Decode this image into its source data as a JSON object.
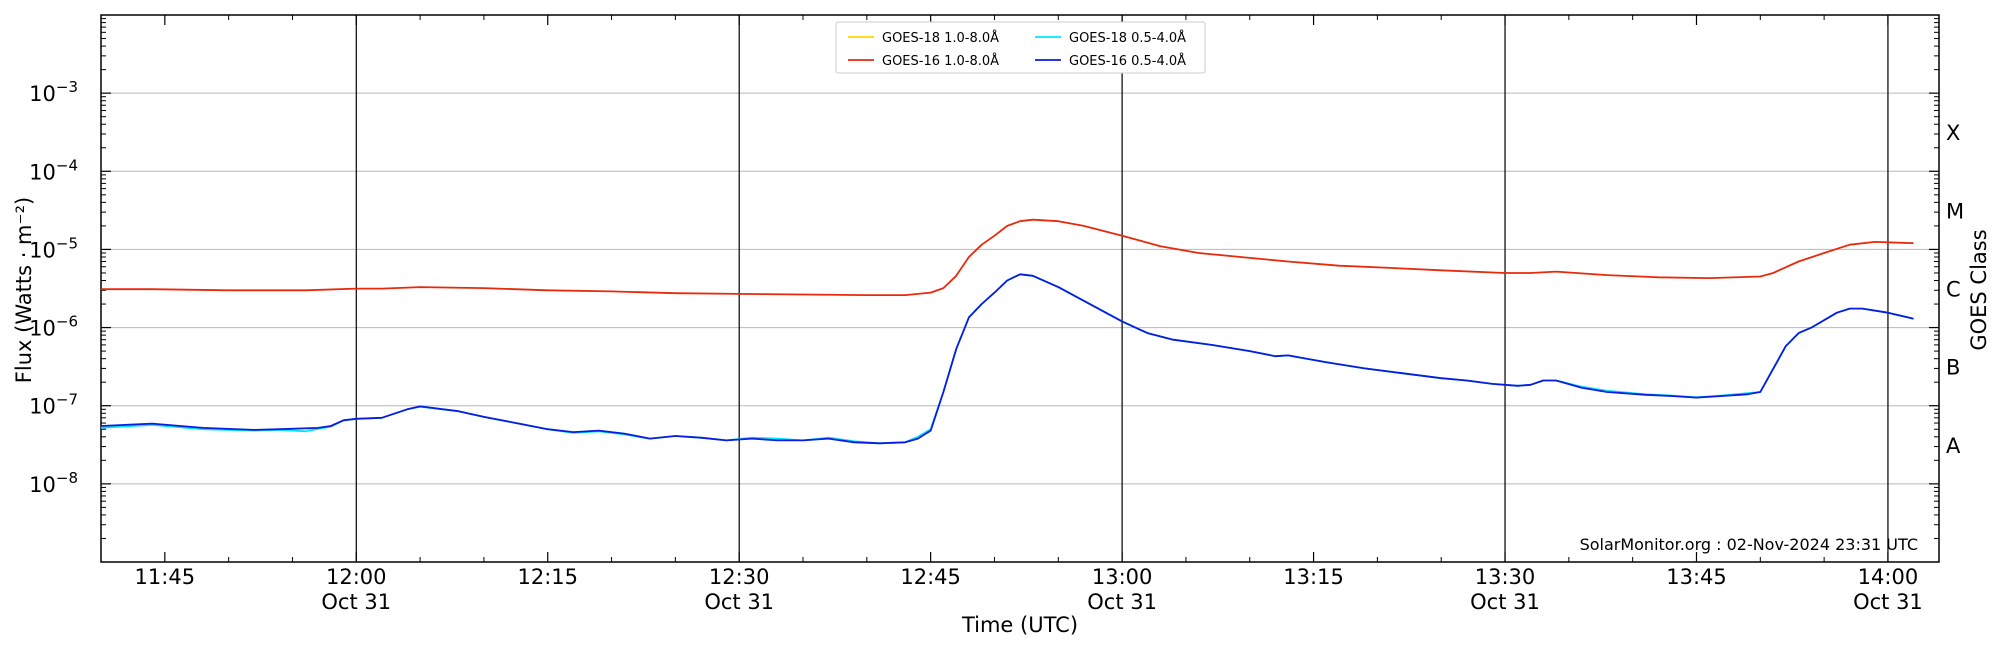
{
  "chart_data": {
    "type": "line",
    "title": "",
    "xlabel": "Time (UTC)",
    "ylabel": "Flux (Watts · m⁻²)",
    "y2label": "GOES Class",
    "yscale": "log",
    "ylim": [
      1e-09,
      0.01
    ],
    "xlim": [
      "11:40",
      "14:04"
    ],
    "grid": "horizontal",
    "legend_position": "top-center",
    "credit": "SolarMonitor.org : 02-Nov-2024 23:31 UTC",
    "yticks": [
      {
        "value": 1e-08,
        "label": "10",
        "exp": "−8"
      },
      {
        "value": 1e-07,
        "label": "10",
        "exp": "−7"
      },
      {
        "value": 1e-06,
        "label": "10",
        "exp": "−6"
      },
      {
        "value": 1e-05,
        "label": "10",
        "exp": "−5"
      },
      {
        "value": 0.0001,
        "label": "10",
        "exp": "−4"
      },
      {
        "value": 0.001,
        "label": "10",
        "exp": "−3"
      }
    ],
    "xticks": [
      {
        "time": "11:45",
        "label": "11:45",
        "date": ""
      },
      {
        "time": "12:00",
        "label": "12:00",
        "date": "Oct 31"
      },
      {
        "time": "12:15",
        "label": "12:15",
        "date": ""
      },
      {
        "time": "12:30",
        "label": "12:30",
        "date": "Oct 31"
      },
      {
        "time": "12:45",
        "label": "12:45",
        "date": ""
      },
      {
        "time": "13:00",
        "label": "13:00",
        "date": "Oct 31"
      },
      {
        "time": "13:15",
        "label": "13:15",
        "date": ""
      },
      {
        "time": "13:30",
        "label": "13:30",
        "date": "Oct 31"
      },
      {
        "time": "13:45",
        "label": "13:45",
        "date": ""
      },
      {
        "time": "14:00",
        "label": "14:00",
        "date": "Oct 31"
      }
    ],
    "vlines": [
      "12:00",
      "12:30",
      "13:00",
      "13:30",
      "14:00"
    ],
    "goes_classes": [
      {
        "label": "A",
        "value": 3.16e-08
      },
      {
        "label": "B",
        "value": 3.16e-07
      },
      {
        "label": "C",
        "value": 3.16e-06
      },
      {
        "label": "M",
        "value": 3.16e-05
      },
      {
        "label": "X",
        "value": 0.000316
      }
    ],
    "series": [
      {
        "name": "GOES-18 1.0-8.0Å",
        "color": "#FFD700",
        "points": []
      },
      {
        "name": "GOES-18 0.5-4.0Å",
        "color": "#00E5FF",
        "points": [
          [
            "11:40",
            5.2e-08
          ],
          [
            "11:44",
            5.7e-08
          ],
          [
            "11:48",
            5e-08
          ],
          [
            "11:52",
            4.8e-08
          ],
          [
            "11:54",
            4.9e-08
          ],
          [
            "11:56",
            4.7e-08
          ],
          [
            "11:58",
            5.4e-08
          ],
          [
            "11:59",
            6.5e-08
          ],
          [
            "12:00",
            6.8e-08
          ],
          [
            "12:02",
            7e-08
          ],
          [
            "12:04",
            9e-08
          ],
          [
            "12:05",
            9.7e-08
          ],
          [
            "12:08",
            8.5e-08
          ],
          [
            "12:10",
            7.2e-08
          ],
          [
            "12:13",
            5.8e-08
          ],
          [
            "12:15",
            5e-08
          ],
          [
            "12:17",
            4.5e-08
          ],
          [
            "12:19",
            4.7e-08
          ],
          [
            "12:21",
            4.3e-08
          ],
          [
            "12:23",
            3.8e-08
          ],
          [
            "12:25",
            4.1e-08
          ],
          [
            "12:27",
            3.9e-08
          ],
          [
            "12:29",
            3.6e-08
          ],
          [
            "12:31",
            3.9e-08
          ],
          [
            "12:33",
            3.8e-08
          ],
          [
            "12:35",
            3.6e-08
          ],
          [
            "12:37",
            3.9e-08
          ],
          [
            "12:39",
            3.5e-08
          ],
          [
            "12:41",
            3.3e-08
          ],
          [
            "12:43",
            3.4e-08
          ],
          [
            "12:44",
            4e-08
          ],
          [
            "12:45",
            5e-08
          ],
          [
            "12:46",
            1.5e-07
          ],
          [
            "12:47",
            5.3e-07
          ],
          [
            "12:48",
            1.35e-06
          ],
          [
            "12:49",
            2e-06
          ],
          [
            "12:50",
            2.8e-06
          ],
          [
            "12:51",
            4e-06
          ],
          [
            "12:52",
            4.8e-06
          ],
          [
            "12:53",
            4.6e-06
          ],
          [
            "12:55",
            3.3e-06
          ],
          [
            "12:57",
            2.2e-06
          ],
          [
            "13:00",
            1.2e-06
          ],
          [
            "13:02",
            8.5e-07
          ],
          [
            "13:04",
            7e-07
          ],
          [
            "13:07",
            6e-07
          ],
          [
            "13:10",
            5e-07
          ],
          [
            "13:12",
            4.3e-07
          ],
          [
            "13:13",
            4.4e-07
          ],
          [
            "13:16",
            3.6e-07
          ],
          [
            "13:19",
            3e-07
          ],
          [
            "13:22",
            2.6e-07
          ],
          [
            "13:25",
            2.25e-07
          ],
          [
            "13:27",
            2.1e-07
          ],
          [
            "13:29",
            1.9e-07
          ],
          [
            "13:31",
            1.8e-07
          ],
          [
            "13:32",
            1.85e-07
          ],
          [
            "13:33",
            2.1e-07
          ],
          [
            "13:34",
            2.1e-07
          ],
          [
            "13:36",
            1.75e-07
          ],
          [
            "13:38",
            1.55e-07
          ],
          [
            "13:41",
            1.4e-07
          ],
          [
            "13:43",
            1.35e-07
          ],
          [
            "13:45",
            1.28e-07
          ],
          [
            "13:47",
            1.35e-07
          ],
          [
            "13:49",
            1.45e-07
          ],
          [
            "13:50",
            1.5e-07
          ],
          [
            "13:52",
            5.8e-07
          ],
          [
            "13:53",
            8.5e-07
          ],
          [
            "13:54",
            1e-06
          ],
          [
            "13:56",
            1.55e-06
          ],
          [
            "13:57",
            1.75e-06
          ],
          [
            "13:58",
            1.75e-06
          ],
          [
            "14:00",
            1.55e-06
          ],
          [
            "14:02",
            1.3e-06
          ]
        ]
      },
      {
        "name": "GOES-16 1.0-8.0Å",
        "color": "#E8290B",
        "points": [
          [
            "11:40",
            3.1e-06
          ],
          [
            "11:44",
            3.1e-06
          ],
          [
            "11:50",
            3e-06
          ],
          [
            "11:56",
            3e-06
          ],
          [
            "12:00",
            3.15e-06
          ],
          [
            "12:02",
            3.15e-06
          ],
          [
            "12:05",
            3.3e-06
          ],
          [
            "12:10",
            3.2e-06
          ],
          [
            "12:15",
            3e-06
          ],
          [
            "12:20",
            2.9e-06
          ],
          [
            "12:25",
            2.75e-06
          ],
          [
            "12:30",
            2.7e-06
          ],
          [
            "12:35",
            2.65e-06
          ],
          [
            "12:40",
            2.6e-06
          ],
          [
            "12:43",
            2.6e-06
          ],
          [
            "12:45",
            2.8e-06
          ],
          [
            "12:46",
            3.2e-06
          ],
          [
            "12:47",
            4.6e-06
          ],
          [
            "12:48",
            8e-06
          ],
          [
            "12:49",
            1.15e-05
          ],
          [
            "12:50",
            1.5e-05
          ],
          [
            "12:51",
            2e-05
          ],
          [
            "12:52",
            2.3e-05
          ],
          [
            "12:53",
            2.4e-05
          ],
          [
            "12:55",
            2.3e-05
          ],
          [
            "12:57",
            2e-05
          ],
          [
            "13:00",
            1.5e-05
          ],
          [
            "13:03",
            1.1e-05
          ],
          [
            "13:06",
            9e-06
          ],
          [
            "13:10",
            7.8e-06
          ],
          [
            "13:13",
            7e-06
          ],
          [
            "13:17",
            6.2e-06
          ],
          [
            "13:21",
            5.8e-06
          ],
          [
            "13:25",
            5.4e-06
          ],
          [
            "13:30",
            5e-06
          ],
          [
            "13:32",
            5e-06
          ],
          [
            "13:34",
            5.2e-06
          ],
          [
            "13:38",
            4.7e-06
          ],
          [
            "13:42",
            4.4e-06
          ],
          [
            "13:46",
            4.3e-06
          ],
          [
            "13:50",
            4.5e-06
          ],
          [
            "13:51",
            5e-06
          ],
          [
            "13:53",
            7e-06
          ],
          [
            "13:55",
            9e-06
          ],
          [
            "13:57",
            1.15e-05
          ],
          [
            "13:59",
            1.25e-05
          ],
          [
            "14:02",
            1.2e-05
          ]
        ]
      },
      {
        "name": "GOES-16 0.5-4.0Å",
        "color": "#0B1CE0",
        "points": [
          [
            "11:40",
            5.5e-08
          ],
          [
            "11:44",
            5.9e-08
          ],
          [
            "11:48",
            5.2e-08
          ],
          [
            "11:52",
            4.9e-08
          ],
          [
            "11:54",
            5e-08
          ],
          [
            "11:57",
            5.2e-08
          ],
          [
            "11:58",
            5.5e-08
          ],
          [
            "11:59",
            6.5e-08
          ],
          [
            "12:00",
            6.8e-08
          ],
          [
            "12:02",
            7e-08
          ],
          [
            "12:04",
            9e-08
          ],
          [
            "12:05",
            9.8e-08
          ],
          [
            "12:08",
            8.5e-08
          ],
          [
            "12:10",
            7.2e-08
          ],
          [
            "12:13",
            5.8e-08
          ],
          [
            "12:15",
            5e-08
          ],
          [
            "12:17",
            4.6e-08
          ],
          [
            "12:19",
            4.8e-08
          ],
          [
            "12:21",
            4.4e-08
          ],
          [
            "12:23",
            3.8e-08
          ],
          [
            "12:25",
            4.1e-08
          ],
          [
            "12:27",
            3.9e-08
          ],
          [
            "12:29",
            3.6e-08
          ],
          [
            "12:31",
            3.8e-08
          ],
          [
            "12:33",
            3.6e-08
          ],
          [
            "12:35",
            3.6e-08
          ],
          [
            "12:37",
            3.8e-08
          ],
          [
            "12:39",
            3.4e-08
          ],
          [
            "12:41",
            3.3e-08
          ],
          [
            "12:43",
            3.4e-08
          ],
          [
            "12:44",
            3.8e-08
          ],
          [
            "12:45",
            4.8e-08
          ],
          [
            "12:46",
            1.5e-07
          ],
          [
            "12:47",
            5.3e-07
          ],
          [
            "12:48",
            1.35e-06
          ],
          [
            "12:49",
            2e-06
          ],
          [
            "12:50",
            2.8e-06
          ],
          [
            "12:51",
            4e-06
          ],
          [
            "12:52",
            4.8e-06
          ],
          [
            "12:53",
            4.6e-06
          ],
          [
            "12:55",
            3.3e-06
          ],
          [
            "12:57",
            2.2e-06
          ],
          [
            "13:00",
            1.2e-06
          ],
          [
            "13:02",
            8.5e-07
          ],
          [
            "13:04",
            7e-07
          ],
          [
            "13:07",
            6e-07
          ],
          [
            "13:10",
            5e-07
          ],
          [
            "13:12",
            4.3e-07
          ],
          [
            "13:13",
            4.4e-07
          ],
          [
            "13:16",
            3.6e-07
          ],
          [
            "13:19",
            3e-07
          ],
          [
            "13:22",
            2.6e-07
          ],
          [
            "13:25",
            2.25e-07
          ],
          [
            "13:27",
            2.1e-07
          ],
          [
            "13:29",
            1.9e-07
          ],
          [
            "13:31",
            1.8e-07
          ],
          [
            "13:32",
            1.85e-07
          ],
          [
            "13:33",
            2.1e-07
          ],
          [
            "13:34",
            2.1e-07
          ],
          [
            "13:36",
            1.7e-07
          ],
          [
            "13:38",
            1.5e-07
          ],
          [
            "13:41",
            1.38e-07
          ],
          [
            "13:43",
            1.33e-07
          ],
          [
            "13:45",
            1.27e-07
          ],
          [
            "13:47",
            1.33e-07
          ],
          [
            "13:49",
            1.4e-07
          ],
          [
            "13:50",
            1.5e-07
          ],
          [
            "13:52",
            5.8e-07
          ],
          [
            "13:53",
            8.5e-07
          ],
          [
            "13:54",
            1e-06
          ],
          [
            "13:56",
            1.55e-06
          ],
          [
            "13:57",
            1.75e-06
          ],
          [
            "13:58",
            1.75e-06
          ],
          [
            "14:00",
            1.55e-06
          ],
          [
            "14:02",
            1.3e-06
          ]
        ]
      }
    ]
  }
}
